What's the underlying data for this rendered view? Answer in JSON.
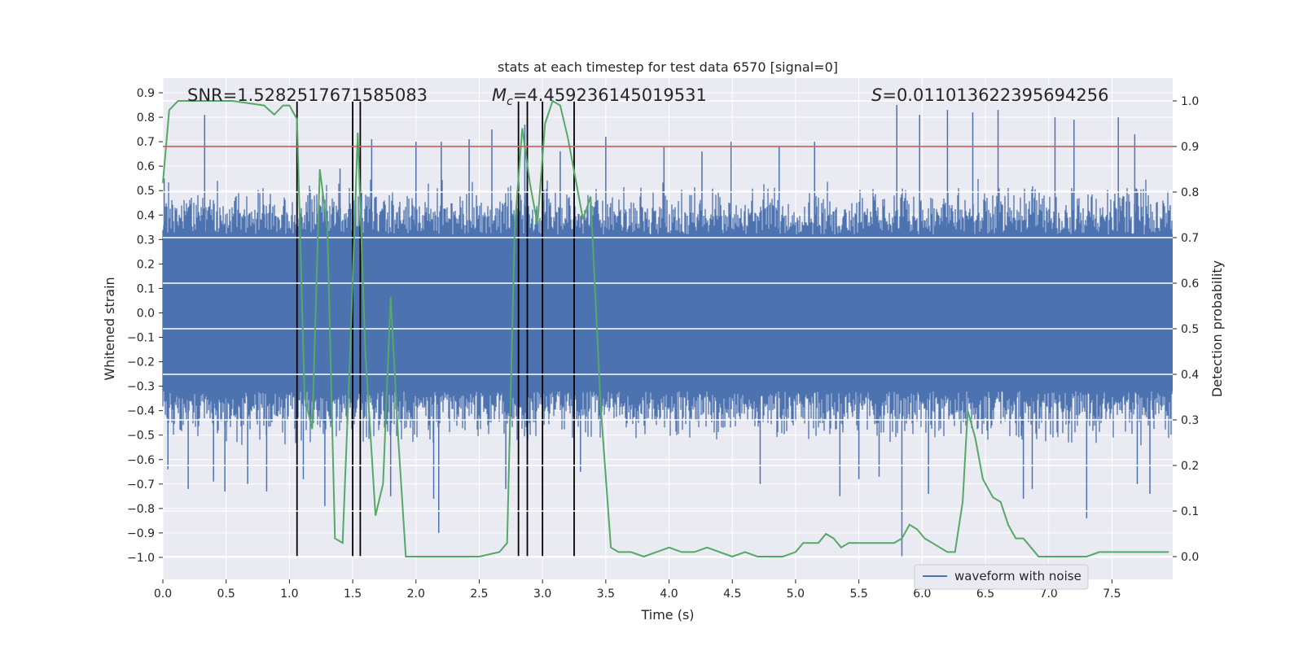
{
  "chart_data": {
    "type": "line",
    "title": "stats at each timestep for test data 6570 [signal=0]",
    "xlabel": "Time (s)",
    "ylabel": "Whitened strain",
    "y2label": "Detection probability",
    "xlim": [
      0.0,
      7.98
    ],
    "ylim": [
      -1.09,
      0.96
    ],
    "y2lim": [
      -0.05,
      1.05
    ],
    "xticks": [
      0.0,
      0.5,
      1.0,
      1.5,
      2.0,
      2.5,
      3.0,
      3.5,
      4.0,
      4.5,
      5.0,
      5.5,
      6.0,
      6.5,
      7.0,
      7.5
    ],
    "xtick_labels": [
      "0.0",
      "0.5",
      "1.0",
      "1.5",
      "2.0",
      "2.5",
      "3.0",
      "3.5",
      "4.0",
      "4.5",
      "5.0",
      "5.5",
      "6.0",
      "6.5",
      "7.0",
      "7.5"
    ],
    "yticks": [
      -1.0,
      -0.9,
      -0.8,
      -0.7,
      -0.6,
      -0.5,
      -0.4,
      -0.3,
      -0.2,
      -0.1,
      0.0,
      0.1,
      0.2,
      0.3,
      0.4,
      0.5,
      0.6,
      0.7,
      0.8,
      0.9
    ],
    "ytick_labels": [
      "−1.0",
      "−0.9",
      "−0.8",
      "−0.7",
      "−0.6",
      "−0.5",
      "−0.4",
      "−0.3",
      "−0.2",
      "−0.1",
      "0.0",
      "0.1",
      "0.2",
      "0.3",
      "0.4",
      "0.5",
      "0.6",
      "0.7",
      "0.8",
      "0.9"
    ],
    "y2ticks": [
      0.0,
      0.1,
      0.2,
      0.3,
      0.4,
      0.5,
      0.6,
      0.7,
      0.8,
      0.9,
      1.0
    ],
    "y2tick_labels": [
      "0.0",
      "0.1",
      "0.2",
      "0.3",
      "0.4",
      "0.5",
      "0.6",
      "0.7",
      "0.8",
      "0.9",
      "1.0"
    ],
    "grid": true,
    "legend": {
      "entries": [
        "waveform with noise"
      ],
      "position": "lower-right"
    },
    "annotations": {
      "snr": "SNR=1.5282517671585083",
      "mc_symbol": "M",
      "mc_sub": "c",
      "mc_value": "=4.459236145019531",
      "s_symbol": "S",
      "s_value": "=0.011013622395694256"
    },
    "threshold": {
      "y2": 0.9,
      "color": "#c44e52"
    },
    "vertical_markers_x": [
      1.06,
      1.5,
      1.56,
      2.81,
      2.88,
      3.0,
      3.25
    ],
    "series": [
      {
        "name": "waveform with noise",
        "axis": "left",
        "color": "#4c72b0",
        "envelope": {
          "core": 0.32,
          "typical_peak": 0.55,
          "spikes": [
            [
              0.01,
              0.55
            ],
            [
              0.04,
              -0.64
            ],
            [
              0.2,
              -0.72
            ],
            [
              0.33,
              0.81
            ],
            [
              0.4,
              -0.69
            ],
            [
              0.49,
              -0.73
            ],
            [
              0.67,
              -0.7
            ],
            [
              0.82,
              -0.73
            ],
            [
              1.06,
              0.78
            ],
            [
              1.11,
              -0.68
            ],
            [
              1.28,
              -0.79
            ],
            [
              1.4,
              0.59
            ],
            [
              1.5,
              0.76
            ],
            [
              1.65,
              0.71
            ],
            [
              1.8,
              -0.75
            ],
            [
              2.0,
              0.7
            ],
            [
              2.14,
              -0.76
            ],
            [
              2.2,
              0.7
            ],
            [
              2.18,
              -0.9
            ],
            [
              2.42,
              0.71
            ],
            [
              2.6,
              0.75
            ],
            [
              2.71,
              -0.72
            ],
            [
              2.86,
              0.77
            ],
            [
              3.0,
              -0.73
            ],
            [
              3.14,
              0.66
            ],
            [
              3.3,
              -0.65
            ],
            [
              3.5,
              0.72
            ],
            [
              3.96,
              0.68
            ],
            [
              4.26,
              0.66
            ],
            [
              4.49,
              0.7
            ],
            [
              4.72,
              -0.7
            ],
            [
              4.87,
              0.68
            ],
            [
              5.15,
              0.7
            ],
            [
              5.35,
              -0.75
            ],
            [
              5.5,
              -0.68
            ],
            [
              5.66,
              -0.67
            ],
            [
              5.8,
              0.85
            ],
            [
              5.84,
              -1.0
            ],
            [
              5.98,
              0.81
            ],
            [
              6.05,
              -0.74
            ],
            [
              6.2,
              0.83
            ],
            [
              6.4,
              0.82
            ],
            [
              6.6,
              0.83
            ],
            [
              6.8,
              -0.76
            ],
            [
              6.87,
              -0.72
            ],
            [
              7.05,
              0.8
            ],
            [
              7.2,
              0.79
            ],
            [
              7.3,
              -0.84
            ],
            [
              7.55,
              0.8
            ],
            [
              7.68,
              0.73
            ],
            [
              7.7,
              -0.7
            ],
            [
              7.8,
              -0.74
            ],
            [
              7.96,
              0.44
            ]
          ]
        }
      },
      {
        "name": "",
        "axis": "right",
        "color": "#55a868",
        "x": [
          0.0,
          0.05,
          0.12,
          0.55,
          0.8,
          0.88,
          0.95,
          1.0,
          1.06,
          1.12,
          1.18,
          1.24,
          1.3,
          1.36,
          1.42,
          1.48,
          1.54,
          1.6,
          1.68,
          1.74,
          1.8,
          1.86,
          1.92,
          2.0,
          2.5,
          2.66,
          2.72,
          2.78,
          2.84,
          2.9,
          2.96,
          3.02,
          3.08,
          3.14,
          3.2,
          3.26,
          3.32,
          3.38,
          3.46,
          3.54,
          3.6,
          3.7,
          3.8,
          3.9,
          4.0,
          4.1,
          4.2,
          4.3,
          4.4,
          4.5,
          4.6,
          4.7,
          4.8,
          4.9,
          5.0,
          5.06,
          5.12,
          5.18,
          5.24,
          5.3,
          5.36,
          5.42,
          5.48,
          5.54,
          5.6,
          5.66,
          5.72,
          5.78,
          5.84,
          5.9,
          5.96,
          6.02,
          6.08,
          6.14,
          6.2,
          6.26,
          6.32,
          6.36,
          6.42,
          6.48,
          6.56,
          6.62,
          6.68,
          6.74,
          6.8,
          6.86,
          6.92,
          7.0,
          7.1,
          7.2,
          7.3,
          7.4,
          7.5,
          7.6,
          7.7,
          7.8,
          7.9,
          7.95
        ],
        "values": [
          0.82,
          0.98,
          1.0,
          1.0,
          0.99,
          0.97,
          0.99,
          0.99,
          0.96,
          0.35,
          0.28,
          0.85,
          0.72,
          0.04,
          0.03,
          0.45,
          0.93,
          0.45,
          0.09,
          0.16,
          0.57,
          0.26,
          0.0,
          0.0,
          0.0,
          0.01,
          0.03,
          0.72,
          0.94,
          0.82,
          0.73,
          0.95,
          1.0,
          0.99,
          0.92,
          0.83,
          0.74,
          0.79,
          0.33,
          0.02,
          0.01,
          0.01,
          0.0,
          0.01,
          0.02,
          0.01,
          0.01,
          0.02,
          0.01,
          0.0,
          0.01,
          0.0,
          0.0,
          0.0,
          0.01,
          0.03,
          0.03,
          0.03,
          0.05,
          0.04,
          0.02,
          0.03,
          0.03,
          0.03,
          0.03,
          0.03,
          0.03,
          0.03,
          0.04,
          0.07,
          0.06,
          0.04,
          0.03,
          0.02,
          0.01,
          0.01,
          0.12,
          0.32,
          0.26,
          0.17,
          0.13,
          0.12,
          0.07,
          0.04,
          0.04,
          0.02,
          0.0,
          0.0,
          0.0,
          0.0,
          0.0,
          0.01,
          0.01,
          0.01,
          0.01,
          0.01,
          0.01,
          0.01
        ]
      }
    ]
  }
}
